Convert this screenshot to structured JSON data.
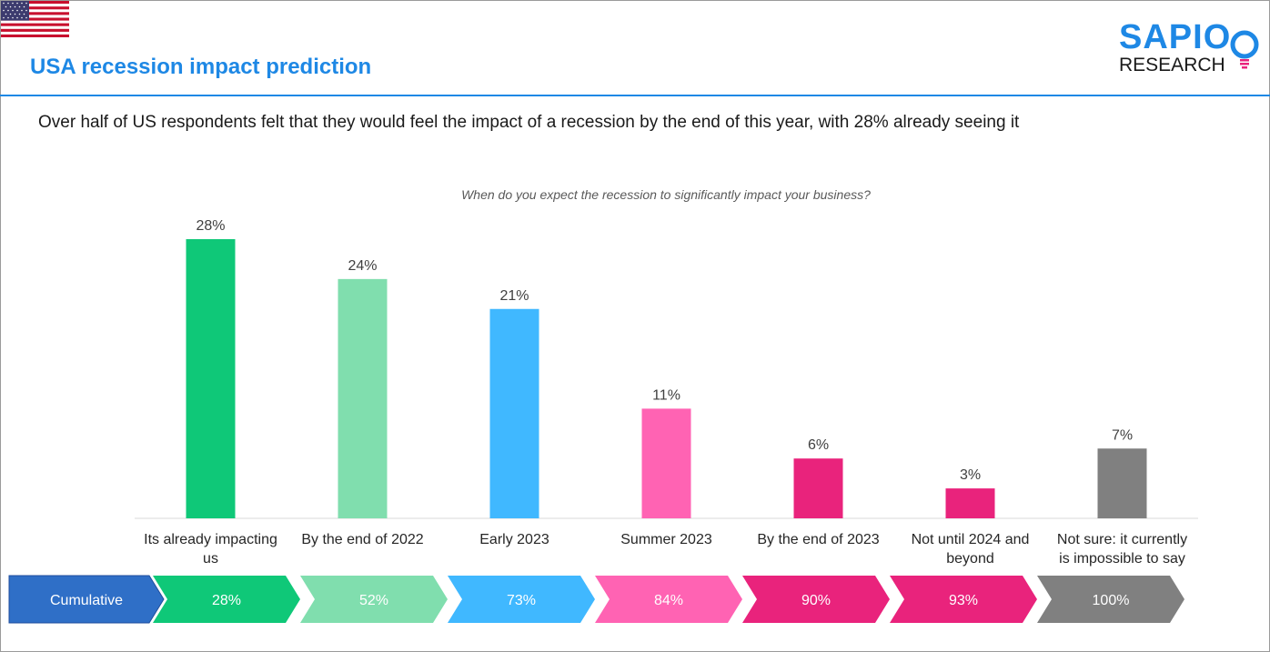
{
  "header": {
    "title": "USA recession impact prediction",
    "logo_main": "SAPIO",
    "logo_sub": "RESEARCH",
    "subtitle": "Over half of US respondents felt that they would feel the impact of a recession by the end of this year, with 28% already seeing it"
  },
  "colors": {
    "accent": "#1e88e5",
    "bars": [
      "#0fc878",
      "#80deae",
      "#40b8ff",
      "#ff63b3",
      "#e9237c",
      "#e9237c",
      "#808080"
    ],
    "cumulative_label_bg": "#2f6fc7"
  },
  "chart_data": {
    "type": "bar",
    "title": "When do you expect the recession to significantly impact your business?",
    "categories": [
      "Its already impacting us",
      "By the end of 2022",
      "Early 2023",
      "Summer 2023",
      "By the end of 2023",
      "Not until 2024 and beyond",
      "Not sure: it currently is impossible to say"
    ],
    "category_lines": [
      [
        "Its already impacting",
        "us"
      ],
      [
        "By the end of 2022"
      ],
      [
        "Early 2023"
      ],
      [
        "Summer 2023"
      ],
      [
        "By the end of 2023"
      ],
      [
        "Not until 2024 and",
        "beyond"
      ],
      [
        "Not sure: it currently",
        "is impossible to say"
      ]
    ],
    "values": [
      28,
      24,
      21,
      11,
      6,
      3,
      7
    ],
    "value_labels": [
      "28%",
      "24%",
      "21%",
      "11%",
      "6%",
      "3%",
      "7%"
    ],
    "ylim": [
      0,
      28
    ],
    "grid": false,
    "cumulative_label": "Cumulative",
    "cumulative_values": [
      28,
      52,
      73,
      84,
      90,
      93,
      100
    ],
    "cumulative_labels": [
      "28%",
      "52%",
      "73%",
      "84%",
      "90%",
      "93%",
      "100%"
    ]
  }
}
